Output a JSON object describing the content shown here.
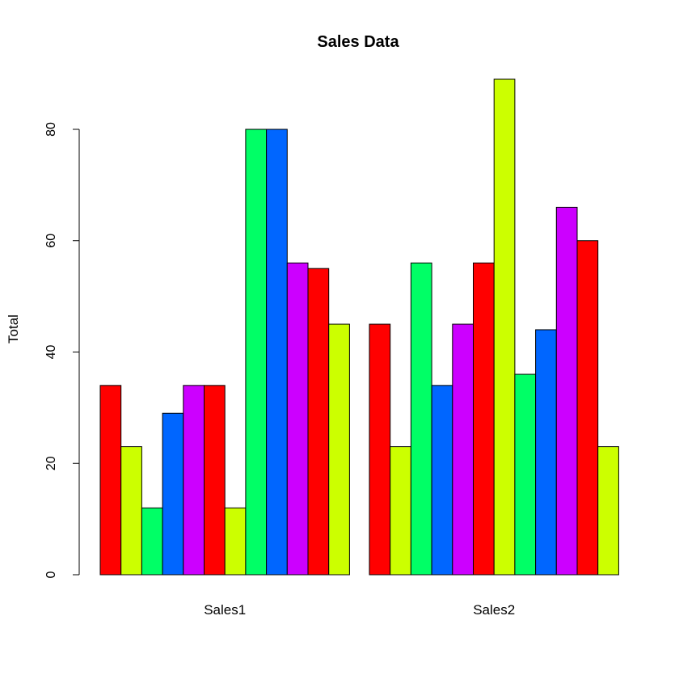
{
  "chart_data": {
    "type": "bar",
    "title": "Sales Data",
    "xlabel": "",
    "ylabel": "Total",
    "ylim": [
      0,
      89
    ],
    "yticks": [
      0,
      20,
      40,
      60,
      80
    ],
    "grid": false,
    "categories": [
      "Sales1",
      "Sales2"
    ],
    "palette": [
      "#FF0000",
      "#CCFF00",
      "#00FF66",
      "#0066FF",
      "#CC00FF"
    ],
    "series": [
      {
        "values": [
          34,
          45
        ]
      },
      {
        "values": [
          23,
          23
        ]
      },
      {
        "values": [
          12,
          56
        ]
      },
      {
        "values": [
          29,
          34
        ]
      },
      {
        "values": [
          34,
          45
        ]
      },
      {
        "values": [
          34,
          56
        ]
      },
      {
        "values": [
          12,
          89
        ]
      },
      {
        "values": [
          80,
          36
        ]
      },
      {
        "values": [
          80,
          44
        ]
      },
      {
        "values": [
          56,
          66
        ]
      },
      {
        "values": [
          55,
          60
        ]
      },
      {
        "values": [
          45,
          23
        ]
      }
    ]
  }
}
